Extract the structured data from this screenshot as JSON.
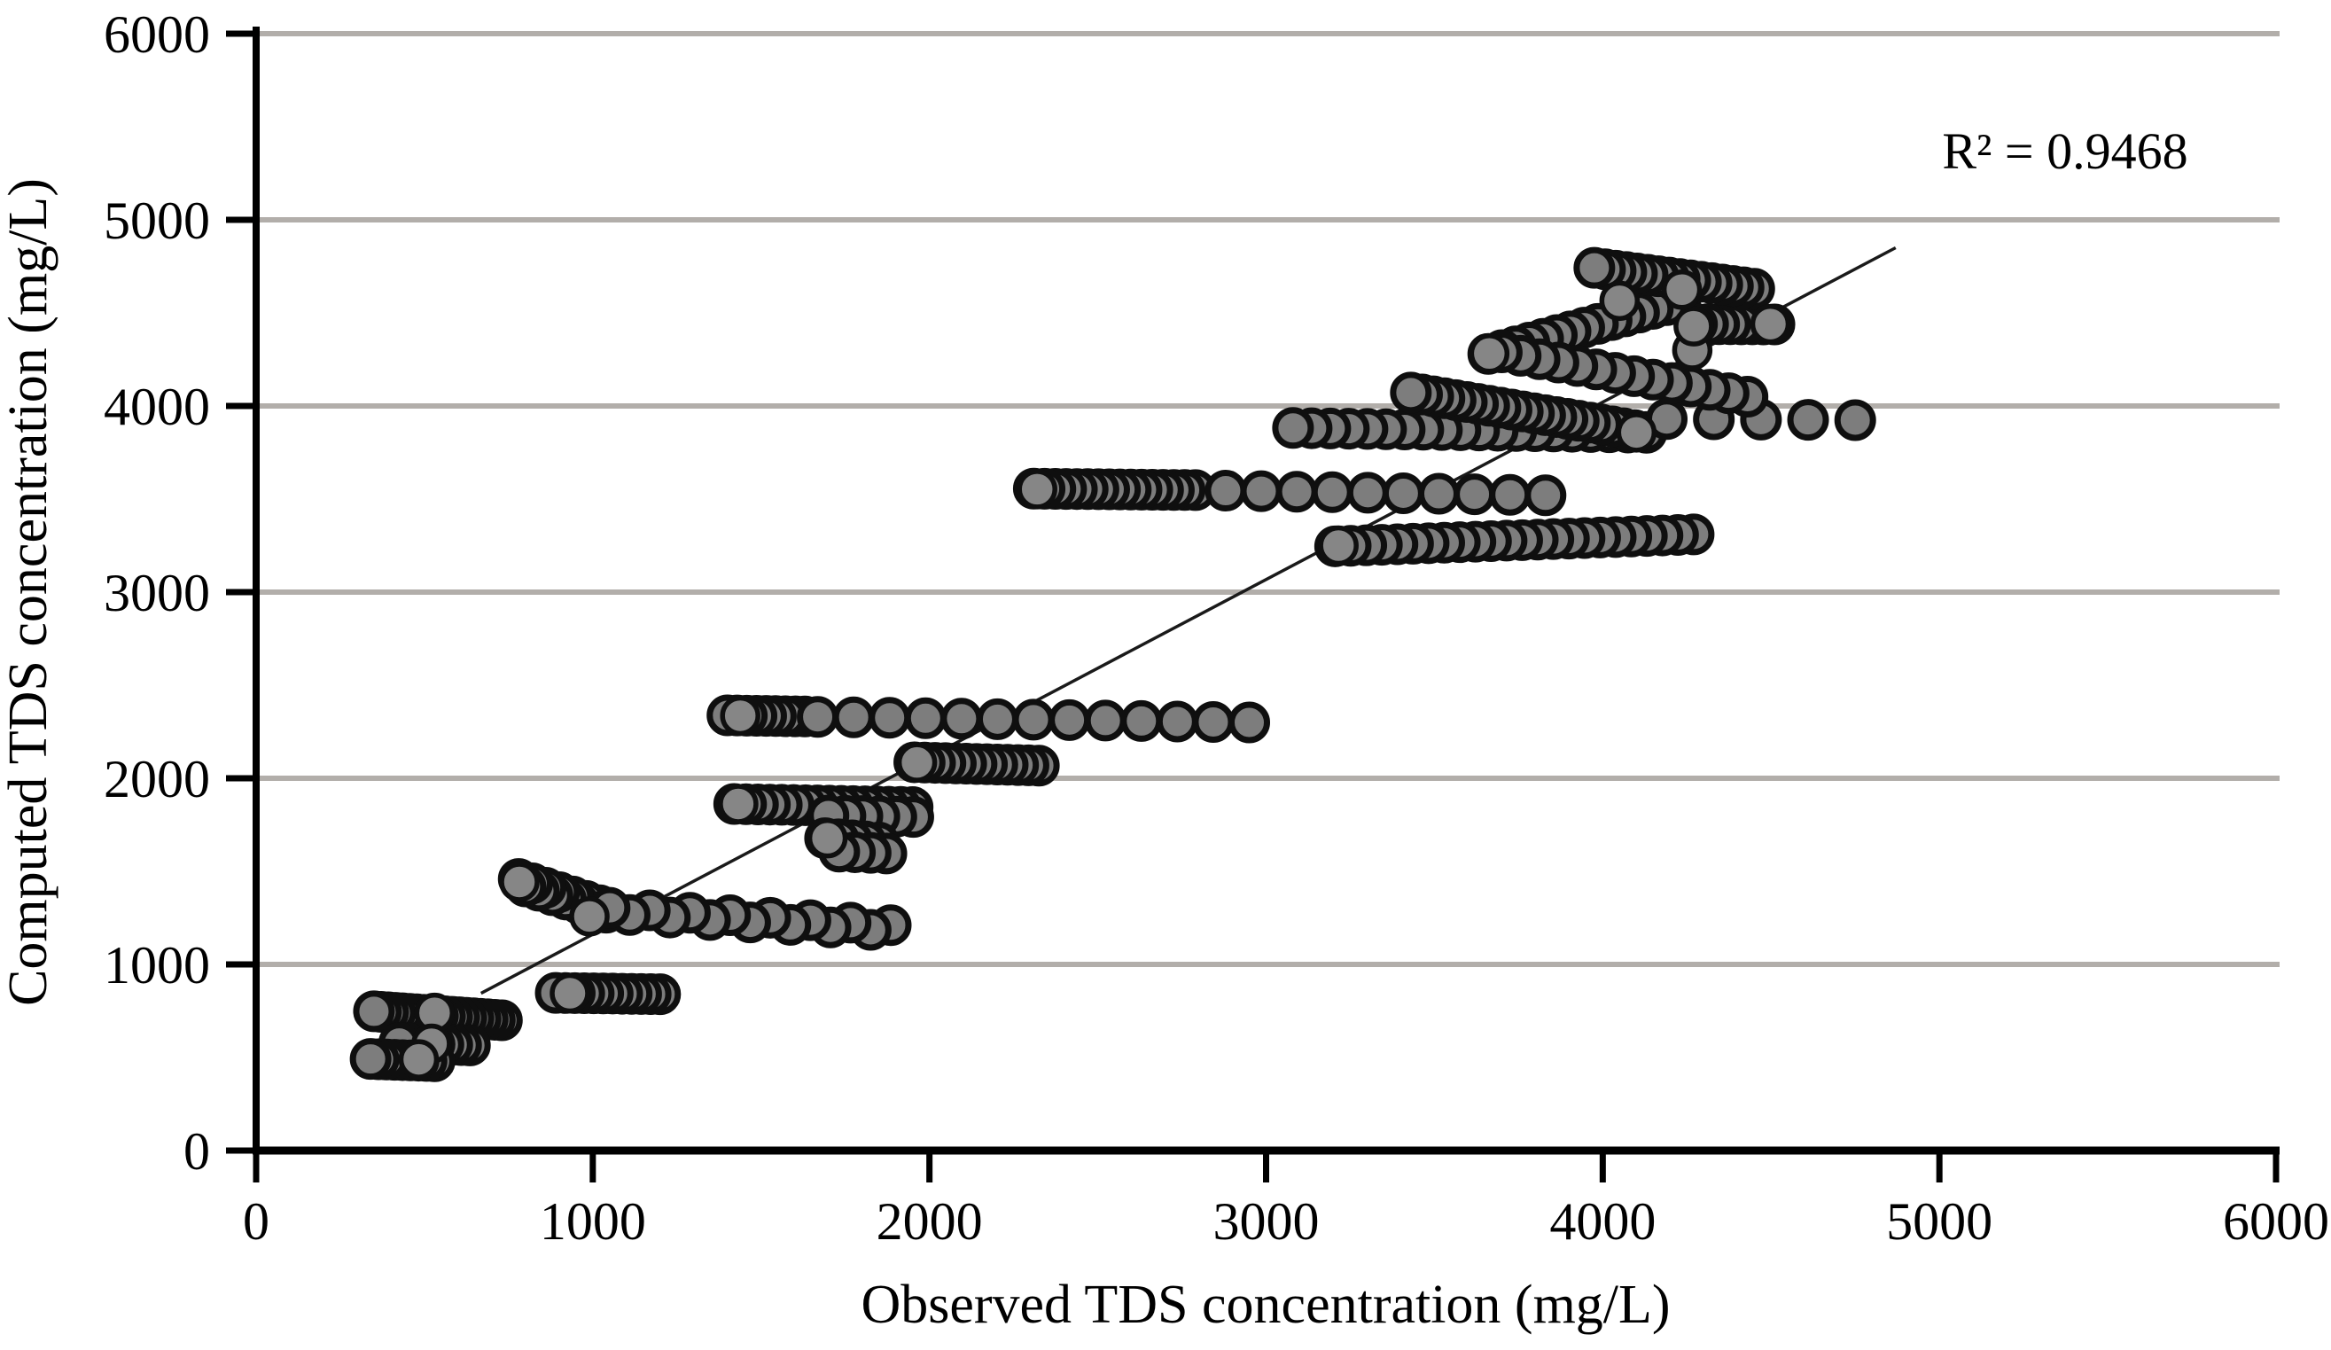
{
  "chart_data": {
    "type": "scatter",
    "title": "",
    "xlabel": "Observed TDS concentration (mg/L)",
    "ylabel": "Computed TDS concentration (mg/L)",
    "annotation": "R² = 0.9468",
    "r_squared": 0.9468,
    "xlim": [
      0,
      6000
    ],
    "ylim": [
      0,
      6000
    ],
    "xticks": [
      0,
      1000,
      2000,
      3000,
      4000,
      5000,
      6000
    ],
    "yticks": [
      0,
      1000,
      2000,
      3000,
      4000,
      5000,
      6000
    ],
    "grid": "horizontal",
    "legend": "none",
    "colors": {
      "point_fill": "#7d7d7d",
      "point_stroke": "#0f0f0f",
      "grid": "#b2aeaa",
      "axis": "#000000",
      "trendline": "#1a1a1a"
    },
    "trendline": {
      "x1": 668,
      "y1": 845,
      "x2": 4870,
      "y2": 4850
    },
    "point_bands": [
      {
        "x0": 350,
        "y0": 748,
        "x1": 730,
        "y1": 700,
        "n": 19
      },
      {
        "x0": 425,
        "y0": 578,
        "x1": 635,
        "y1": 565,
        "n": 9
      },
      {
        "x0": 340,
        "y0": 492,
        "x1": 530,
        "y1": 480,
        "n": 9
      },
      {
        "x0": 890,
        "y0": 847,
        "x1": 1200,
        "y1": 840,
        "n": 12
      },
      {
        "x0": 780,
        "y0": 1445,
        "x1": 1040,
        "y1": 1292,
        "n": 14,
        "stagger": 14
      },
      {
        "x0": 1050,
        "y0": 1288,
        "x1": 1885,
        "y1": 1195,
        "n": 15,
        "stagger": 16
      },
      {
        "x0": 1420,
        "y0": 1862,
        "x1": 1950,
        "y1": 1845,
        "n": 16
      },
      {
        "x0": 1700,
        "y0": 1800,
        "x1": 1952,
        "y1": 1792,
        "n": 6
      },
      {
        "x0": 1690,
        "y0": 1678,
        "x1": 1850,
        "y1": 1655,
        "n": 5
      },
      {
        "x0": 1732,
        "y0": 1606,
        "x1": 1872,
        "y1": 1596,
        "n": 4
      },
      {
        "x0": 1955,
        "y0": 2086,
        "x1": 2325,
        "y1": 2068,
        "n": 13
      },
      {
        "x0": 1400,
        "y0": 2338,
        "x1": 1630,
        "y1": 2332,
        "n": 9
      },
      {
        "x0": 1668,
        "y0": 2330,
        "x1": 2950,
        "y1": 2300,
        "n": 13
      },
      {
        "x0": 2310,
        "y0": 3556,
        "x1": 2790,
        "y1": 3548,
        "n": 16
      },
      {
        "x0": 2880,
        "y0": 3545,
        "x1": 3830,
        "y1": 3520,
        "n": 10
      },
      {
        "x0": 3205,
        "y0": 3246,
        "x1": 4270,
        "y1": 3310,
        "n": 24
      },
      {
        "x0": 3080,
        "y0": 3882,
        "x1": 4130,
        "y1": 3856,
        "n": 20
      },
      {
        "x0": 3430,
        "y0": 4072,
        "x1": 4128,
        "y1": 3860,
        "n": 22
      },
      {
        "x0": 4190,
        "y0": 3930,
        "x1": 4750,
        "y1": 3924,
        "n": 5
      },
      {
        "x0": 3660,
        "y0": 4280,
        "x1": 4230,
        "y1": 4562,
        "n": 15
      },
      {
        "x0": 3700,
        "y0": 4288,
        "x1": 4430,
        "y1": 4050,
        "n": 14
      },
      {
        "x0": 4280,
        "y0": 4440,
        "x1": 4510,
        "y1": 4438,
        "n": 8
      },
      {
        "x0": 3975,
        "y0": 4742,
        "x1": 4450,
        "y1": 4630,
        "n": 16
      }
    ],
    "accent_points": [
      [
        530,
        740
      ],
      [
        521,
        574
      ],
      [
        483,
        490
      ],
      [
        932,
        845
      ],
      [
        782,
        1443
      ],
      [
        990,
        1258
      ],
      [
        1432,
        1862
      ],
      [
        1697,
        1678
      ],
      [
        1963,
        2085
      ],
      [
        1438,
        2336
      ],
      [
        2320,
        3553
      ],
      [
        3215,
        3250
      ],
      [
        4100,
        3858
      ],
      [
        3663,
        4282
      ],
      [
        4266,
        4300
      ],
      [
        4270,
        4428
      ],
      [
        4498,
        4440
      ],
      [
        4050,
        4565
      ],
      [
        4235,
        4625
      ]
    ]
  }
}
